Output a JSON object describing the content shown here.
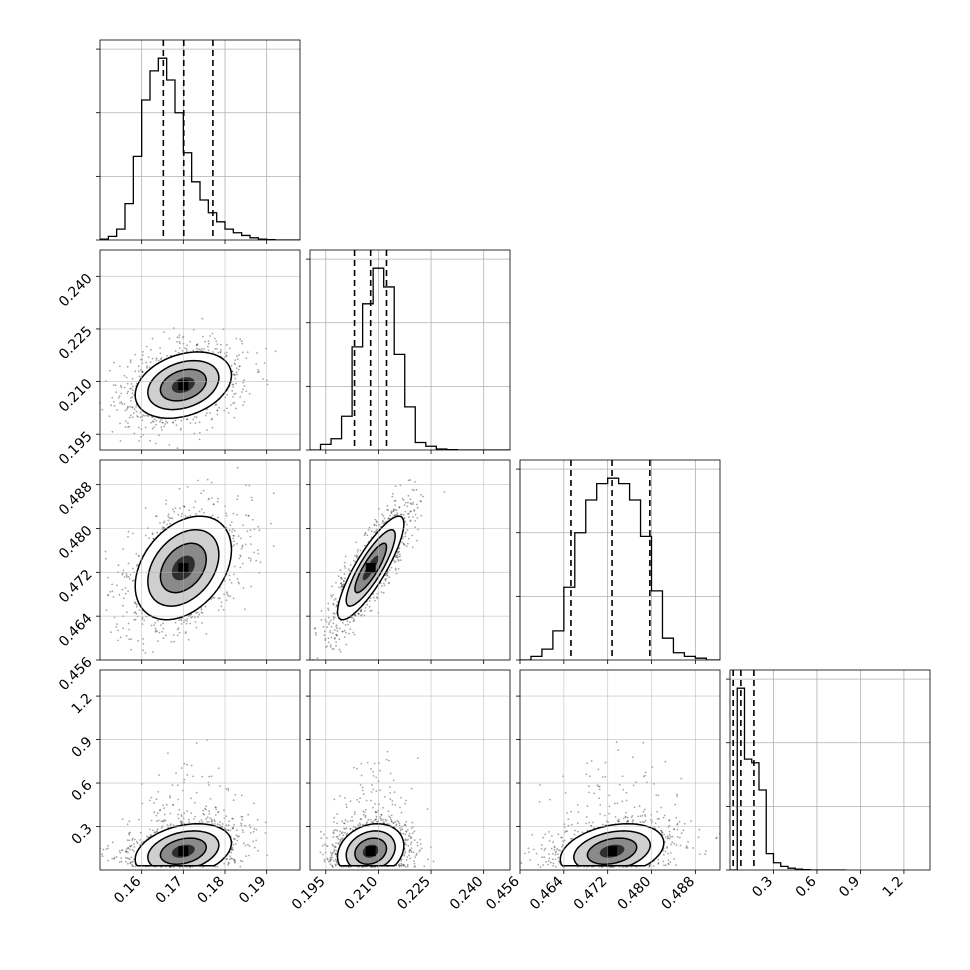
{
  "chart_data": {
    "type": "corner",
    "title": "",
    "grid": true,
    "parameters": [
      {
        "range": [
          0.15,
          0.198
        ],
        "ticks": [
          0.16,
          0.17,
          0.18,
          0.19
        ],
        "tick_labels": [
          "0.16",
          "0.17",
          "0.18",
          "0.19"
        ]
      },
      {
        "range": [
          0.1905,
          0.2475
        ],
        "ticks": [
          0.195,
          0.21,
          0.225,
          0.24
        ],
        "tick_labels": [
          "0.195",
          "0.210",
          "0.225",
          "0.240"
        ]
      },
      {
        "range": [
          0.456,
          0.4925
        ],
        "ticks": [
          0.456,
          0.464,
          0.472,
          0.48,
          0.488
        ],
        "tick_labels": [
          "0.456",
          "0.464",
          "0.472",
          "0.480",
          "0.488"
        ]
      },
      {
        "range": [
          0.0,
          1.38
        ],
        "ticks": [
          0.3,
          0.6,
          0.9,
          1.2
        ],
        "tick_labels": [
          "0.3",
          "0.6",
          "0.9",
          "1.2"
        ]
      }
    ],
    "histograms": [
      {
        "edges": [
          0.15,
          0.152,
          0.154,
          0.156,
          0.158,
          0.16,
          0.162,
          0.164,
          0.166,
          0.168,
          0.17,
          0.172,
          0.174,
          0.176,
          0.178,
          0.18,
          0.182,
          0.184,
          0.186,
          0.188,
          0.19,
          0.192,
          0.194,
          0.196,
          0.198
        ],
        "counts": [
          0.005,
          0.02,
          0.06,
          0.2,
          0.46,
          0.77,
          0.93,
          1.0,
          0.88,
          0.7,
          0.48,
          0.32,
          0.22,
          0.15,
          0.1,
          0.06,
          0.04,
          0.025,
          0.012,
          0.005,
          0.002,
          0.0,
          0.0,
          0.0
        ],
        "quantiles": [
          0.1652,
          0.1701,
          0.1771
        ]
      },
      {
        "edges": [
          0.1905,
          0.1935,
          0.1965,
          0.1995,
          0.2025,
          0.2055,
          0.2085,
          0.2115,
          0.2145,
          0.2175,
          0.2205,
          0.2235,
          0.2265,
          0.2295,
          0.2325,
          0.2355,
          0.2385,
          0.2415,
          0.2445,
          0.2475
        ],
        "counts": [
          0.0,
          0.03,
          0.06,
          0.18,
          0.55,
          0.78,
          0.97,
          0.87,
          0.51,
          0.23,
          0.04,
          0.02,
          0.005,
          0.002,
          0.0,
          0.0,
          0.0,
          0.0,
          0.0
        ],
        "quantiles": [
          0.2032,
          0.2078,
          0.2123
        ]
      },
      {
        "edges": [
          0.456,
          0.458,
          0.46,
          0.462,
          0.464,
          0.466,
          0.468,
          0.47,
          0.472,
          0.474,
          0.476,
          0.478,
          0.48,
          0.482,
          0.484,
          0.486,
          0.488,
          0.49,
          0.4925
        ],
        "counts": [
          0.0,
          0.02,
          0.06,
          0.16,
          0.4,
          0.7,
          0.88,
          0.97,
          1.0,
          0.97,
          0.88,
          0.68,
          0.38,
          0.12,
          0.04,
          0.02,
          0.01,
          0.0
        ],
        "quantiles": [
          0.4653,
          0.4728,
          0.4797
        ]
      },
      {
        "edges": [
          0.0,
          0.05,
          0.1,
          0.15,
          0.2,
          0.25,
          0.3,
          0.35,
          0.4,
          0.45,
          0.5,
          0.55,
          0.6,
          0.65,
          0.7,
          0.75,
          0.8
        ],
        "counts": [
          0.0,
          1.0,
          0.61,
          0.59,
          0.44,
          0.09,
          0.04,
          0.02,
          0.01,
          0.005,
          0.002,
          0.0,
          0.0,
          0.0,
          0.0,
          0.0
        ],
        "quantiles": [
          0.022,
          0.075,
          0.165
        ]
      }
    ],
    "pairs": [
      {
        "row": 1,
        "col": 0,
        "center": [
          0.17,
          0.209
        ],
        "sd": [
          0.0055,
          0.0045
        ],
        "rho": 0.3,
        "contour_levels": [
          1,
          2,
          3
        ]
      },
      {
        "row": 2,
        "col": 0,
        "center": [
          0.17,
          0.4728
        ],
        "sd": [
          0.0055,
          0.0045
        ],
        "rho": 0.35,
        "contour_levels": [
          1,
          2,
          3
        ]
      },
      {
        "row": 2,
        "col": 1,
        "center": [
          0.2078,
          0.4728
        ],
        "sd": [
          0.0045,
          0.0045
        ],
        "rho": 0.85,
        "contour_levels": [
          1,
          2,
          3
        ]
      },
      {
        "row": 3,
        "col": 0,
        "center": [
          0.17,
          0.13
        ],
        "sd": [
          0.0055,
          0.09
        ],
        "rho": 0.3,
        "contour_levels": [
          1,
          2,
          3
        ]
      },
      {
        "row": 3,
        "col": 1,
        "center": [
          0.2078,
          0.13
        ],
        "sd": [
          0.0045,
          0.09
        ],
        "rho": 0.2,
        "contour_levels": [
          1,
          2,
          3
        ]
      },
      {
        "row": 3,
        "col": 2,
        "center": [
          0.4728,
          0.13
        ],
        "sd": [
          0.0045,
          0.09
        ],
        "rho": 0.3,
        "contour_levels": [
          1,
          2,
          3
        ]
      }
    ]
  }
}
